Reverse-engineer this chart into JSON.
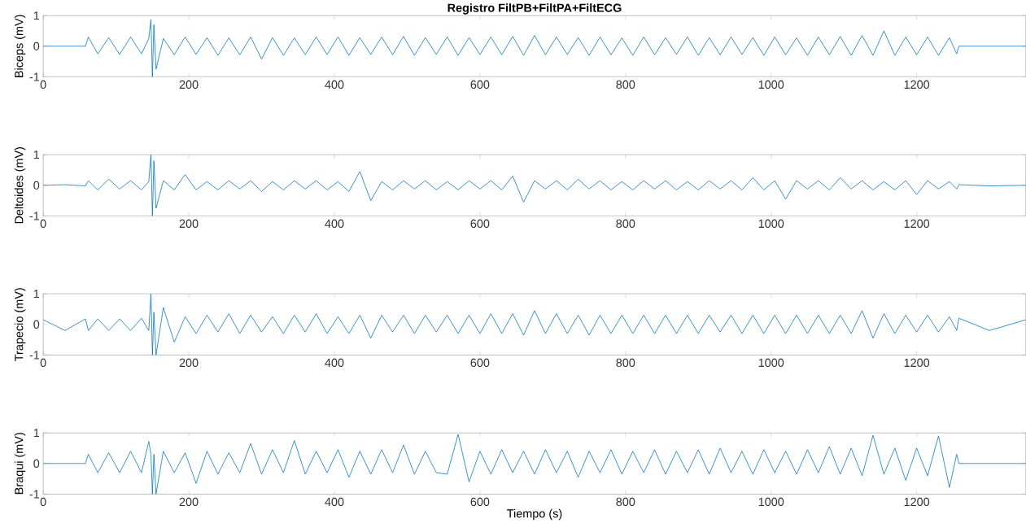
{
  "chart_data": [
    {
      "type": "line",
      "title": "Registro FiltPB+FiltPA+FiltECG",
      "ylabel": "Biceps (mV)",
      "xlim": [
        0,
        1350
      ],
      "xticks": [
        0,
        200,
        400,
        600,
        800,
        1000,
        1200
      ],
      "ylim": [
        -1,
        1
      ],
      "yticks": [
        -1,
        0,
        1
      ],
      "grid": false,
      "line_style": "solid",
      "x": [
        0,
        58,
        62,
        75,
        90,
        105,
        120,
        135,
        145,
        148,
        150,
        152,
        155,
        165,
        180,
        195,
        210,
        225,
        240,
        255,
        270,
        285,
        300,
        315,
        330,
        345,
        360,
        375,
        390,
        405,
        420,
        435,
        450,
        465,
        480,
        495,
        510,
        525,
        540,
        555,
        570,
        585,
        600,
        615,
        630,
        645,
        660,
        675,
        690,
        705,
        720,
        735,
        750,
        765,
        780,
        795,
        810,
        825,
        840,
        855,
        870,
        885,
        900,
        915,
        930,
        945,
        960,
        975,
        990,
        1005,
        1020,
        1035,
        1050,
        1065,
        1080,
        1095,
        1110,
        1125,
        1140,
        1155,
        1170,
        1185,
        1200,
        1215,
        1230,
        1245,
        1255,
        1258,
        1350
      ],
      "series": [
        {
          "color": "#0072bd",
          "values": [
            0,
            0,
            0.3,
            -0.25,
            0.28,
            -0.27,
            0.3,
            -0.25,
            0.25,
            0.87,
            -1,
            0.7,
            -0.75,
            0.25,
            -0.28,
            0.3,
            -0.27,
            0.28,
            -0.3,
            0.27,
            -0.28,
            0.3,
            -0.42,
            0.28,
            -0.3,
            0.27,
            -0.28,
            0.3,
            -0.27,
            0.3,
            -0.3,
            0.28,
            -0.27,
            0.3,
            -0.28,
            0.32,
            -0.3,
            0.28,
            -0.27,
            0.3,
            -0.3,
            0.28,
            -0.27,
            0.3,
            -0.28,
            0.32,
            -0.3,
            0.35,
            -0.28,
            0.3,
            -0.27,
            0.28,
            -0.3,
            0.3,
            -0.28,
            0.27,
            -0.3,
            0.3,
            -0.28,
            0.28,
            -0.27,
            0.3,
            -0.3,
            0.28,
            -0.28,
            0.3,
            -0.27,
            0.28,
            -0.3,
            0.3,
            -0.28,
            0.27,
            -0.3,
            0.3,
            -0.28,
            0.32,
            -0.3,
            0.35,
            -0.3,
            0.5,
            -0.3,
            0.3,
            -0.28,
            0.3,
            -0.3,
            0.28,
            -0.25,
            0,
            0
          ]
        }
      ]
    },
    {
      "type": "line",
      "ylabel": "Deltoides (mV)",
      "xlim": [
        0,
        1350
      ],
      "xticks": [
        0,
        200,
        400,
        600,
        800,
        1000,
        1200
      ],
      "ylim": [
        -1,
        1
      ],
      "yticks": [
        -1,
        0,
        1
      ],
      "grid": false,
      "line_style": "solid",
      "x": [
        0,
        30,
        58,
        62,
        75,
        90,
        105,
        120,
        135,
        145,
        148,
        150,
        152,
        155,
        165,
        180,
        195,
        210,
        225,
        240,
        255,
        270,
        285,
        300,
        315,
        330,
        345,
        360,
        375,
        390,
        405,
        420,
        435,
        450,
        465,
        480,
        495,
        510,
        525,
        540,
        555,
        570,
        585,
        600,
        615,
        630,
        645,
        660,
        675,
        690,
        705,
        720,
        735,
        750,
        765,
        780,
        795,
        810,
        825,
        840,
        855,
        870,
        885,
        900,
        915,
        930,
        945,
        960,
        975,
        990,
        1005,
        1020,
        1035,
        1050,
        1065,
        1080,
        1095,
        1110,
        1125,
        1140,
        1155,
        1170,
        1185,
        1200,
        1215,
        1230,
        1245,
        1255,
        1258,
        1300,
        1350
      ],
      "series": [
        {
          "color": "#0072bd",
          "values": [
            0,
            0.02,
            -0.02,
            0.15,
            -0.15,
            0.2,
            -0.12,
            0.15,
            -0.15,
            0.12,
            1,
            -1,
            0.8,
            -0.75,
            0.15,
            -0.15,
            0.35,
            -0.15,
            0.12,
            -0.15,
            0.15,
            -0.12,
            0.15,
            -0.2,
            0.12,
            -0.15,
            0.15,
            -0.12,
            0.15,
            -0.15,
            0.12,
            -0.2,
            0.45,
            -0.5,
            0.12,
            -0.15,
            0.15,
            -0.12,
            0.15,
            -0.15,
            0.12,
            -0.15,
            0.15,
            -0.12,
            0.15,
            -0.15,
            0.3,
            -0.55,
            0.15,
            -0.12,
            0.15,
            -0.15,
            0.2,
            -0.12,
            0.15,
            -0.15,
            0.12,
            -0.15,
            0.15,
            -0.12,
            0.15,
            -0.15,
            0.12,
            -0.15,
            0.15,
            -0.12,
            0.15,
            -0.15,
            0.25,
            -0.15,
            0.15,
            -0.45,
            0.15,
            -0.12,
            0.15,
            -0.15,
            0.25,
            -0.12,
            0.15,
            -0.15,
            0.12,
            -0.15,
            0.15,
            -0.3,
            0.15,
            -0.12,
            0.12,
            -0.12,
            0.02,
            -0.02,
            0
          ]
        }
      ]
    },
    {
      "type": "line",
      "ylabel": "Trapecio (mV)",
      "xlim": [
        0,
        1350
      ],
      "xticks": [
        0,
        200,
        400,
        600,
        800,
        1000,
        1200
      ],
      "ylim": [
        -1,
        1
      ],
      "yticks": [
        -1,
        0,
        1
      ],
      "grid": false,
      "line_style": "solid",
      "x": [
        0,
        30,
        58,
        62,
        75,
        90,
        105,
        120,
        135,
        145,
        148,
        150,
        152,
        155,
        165,
        180,
        195,
        210,
        225,
        240,
        255,
        270,
        285,
        300,
        315,
        330,
        345,
        360,
        375,
        390,
        405,
        420,
        435,
        450,
        465,
        480,
        495,
        510,
        525,
        540,
        555,
        570,
        585,
        600,
        615,
        630,
        645,
        660,
        675,
        690,
        705,
        720,
        735,
        750,
        765,
        780,
        795,
        810,
        825,
        840,
        855,
        870,
        885,
        900,
        915,
        930,
        945,
        960,
        975,
        990,
        1005,
        1020,
        1035,
        1050,
        1065,
        1080,
        1095,
        1110,
        1125,
        1140,
        1155,
        1170,
        1185,
        1200,
        1215,
        1230,
        1245,
        1255,
        1258,
        1300,
        1350
      ],
      "series": [
        {
          "color": "#0072bd",
          "values": [
            0.15,
            -0.2,
            0.18,
            -0.2,
            0.18,
            -0.2,
            0.18,
            -0.2,
            0.2,
            -0.2,
            1,
            -1,
            0.4,
            -1,
            0.55,
            -0.58,
            0.25,
            -0.3,
            0.3,
            -0.25,
            0.35,
            -0.3,
            0.3,
            -0.25,
            0.25,
            -0.3,
            0.3,
            -0.25,
            0.35,
            -0.3,
            0.25,
            -0.3,
            0.3,
            -0.45,
            0.3,
            -0.25,
            0.3,
            -0.3,
            0.3,
            -0.25,
            0.3,
            -0.3,
            0.3,
            -0.3,
            0.35,
            -0.3,
            0.35,
            -0.35,
            0.45,
            -0.3,
            0.35,
            -0.3,
            0.3,
            -0.35,
            0.3,
            -0.3,
            0.3,
            -0.3,
            0.3,
            -0.3,
            0.3,
            -0.3,
            0.3,
            -0.3,
            0.3,
            -0.25,
            0.3,
            -0.3,
            0.3,
            -0.3,
            0.3,
            -0.3,
            0.3,
            -0.3,
            0.3,
            -0.3,
            0.3,
            -0.3,
            0.45,
            -0.45,
            0.35,
            -0.3,
            0.3,
            -0.25,
            0.3,
            -0.25,
            0.25,
            -0.2,
            0.2,
            -0.2,
            0.15
          ]
        }
      ]
    },
    {
      "type": "line",
      "ylabel": "Braqui (mV)",
      "xlabel": "Tiempo (s)",
      "xlim": [
        0,
        1350
      ],
      "xticks": [
        0,
        200,
        400,
        600,
        800,
        1000,
        1200
      ],
      "ylim": [
        -1,
        1
      ],
      "yticks": [
        -1,
        0,
        1
      ],
      "grid": false,
      "line_style": "solid",
      "x": [
        0,
        58,
        62,
        75,
        90,
        105,
        120,
        135,
        145,
        148,
        150,
        152,
        155,
        165,
        180,
        195,
        210,
        225,
        240,
        255,
        270,
        285,
        300,
        315,
        330,
        345,
        360,
        375,
        390,
        405,
        420,
        435,
        450,
        465,
        480,
        495,
        510,
        525,
        540,
        555,
        570,
        585,
        600,
        615,
        630,
        645,
        660,
        675,
        690,
        705,
        720,
        735,
        750,
        765,
        780,
        795,
        810,
        825,
        840,
        855,
        870,
        885,
        900,
        915,
        930,
        945,
        960,
        975,
        990,
        1005,
        1020,
        1035,
        1050,
        1065,
        1080,
        1095,
        1110,
        1125,
        1140,
        1155,
        1170,
        1185,
        1200,
        1215,
        1230,
        1245,
        1255,
        1258,
        1350
      ],
      "series": [
        {
          "color": "#0072bd",
          "values": [
            0,
            0,
            0.3,
            -0.3,
            0.35,
            -0.3,
            0.4,
            -0.3,
            0.72,
            0.3,
            -1,
            0.3,
            -1,
            0.4,
            -0.3,
            0.35,
            -0.65,
            0.4,
            -0.35,
            0.35,
            -0.3,
            0.65,
            -0.35,
            0.45,
            -0.3,
            0.75,
            -0.35,
            0.4,
            -0.3,
            0.45,
            -0.45,
            0.4,
            -0.35,
            0.45,
            -0.3,
            0.6,
            -0.35,
            0.4,
            -0.3,
            -0.35,
            0.95,
            -0.6,
            0.4,
            -0.35,
            0.45,
            -0.3,
            0.4,
            -0.35,
            0.45,
            -0.3,
            0.4,
            -0.45,
            0.4,
            -0.3,
            0.45,
            -0.35,
            0.4,
            -0.3,
            0.45,
            -0.35,
            0.4,
            -0.3,
            0.45,
            -0.35,
            0.5,
            -0.3,
            0.4,
            -0.35,
            0.45,
            -0.3,
            0.4,
            -0.35,
            0.45,
            -0.3,
            0.55,
            -0.35,
            0.5,
            -0.4,
            0.92,
            -0.35,
            0.5,
            -0.55,
            0.5,
            -0.4,
            0.9,
            -0.78,
            0.3,
            0,
            0
          ]
        }
      ]
    }
  ]
}
